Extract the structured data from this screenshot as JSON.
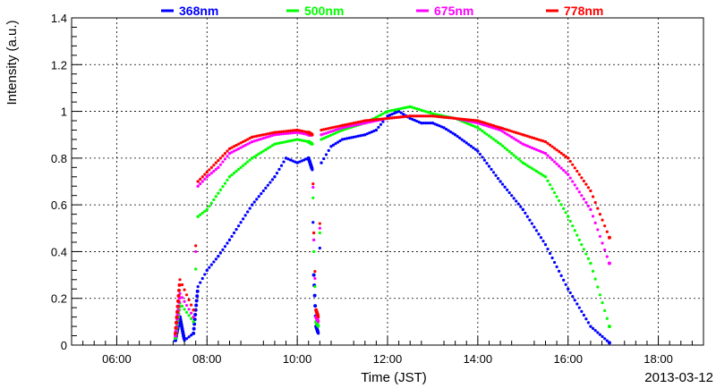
{
  "chart_data": {
    "type": "scatter",
    "xlabel": "Time (JST)",
    "ylabel": "Intensity (a.u.)",
    "date_label": "2013-03-12",
    "xlim": [
      "05:00",
      "19:00"
    ],
    "ylim": [
      0,
      1.4
    ],
    "x_ticks": [
      "06:00",
      "08:00",
      "10:00",
      "12:00",
      "14:00",
      "16:00",
      "18:00"
    ],
    "y_ticks": [
      "0",
      "0.2",
      "0.4",
      "0.6",
      "0.8",
      "1",
      "1.2",
      "1.4"
    ],
    "grid": true,
    "legend_position": "top",
    "series": [
      {
        "name": "368nm",
        "color": "#0000ff",
        "points": [
          [
            "07:18",
            0.02
          ],
          [
            "07:24",
            0.12
          ],
          [
            "07:30",
            0.02
          ],
          [
            "07:42",
            0.05
          ],
          [
            "07:48",
            0.25
          ],
          [
            "08:00",
            0.32
          ],
          [
            "08:15",
            0.38
          ],
          [
            "08:30",
            0.45
          ],
          [
            "09:00",
            0.6
          ],
          [
            "09:30",
            0.72
          ],
          [
            "09:45",
            0.8
          ],
          [
            "10:00",
            0.78
          ],
          [
            "10:15",
            0.8
          ],
          [
            "10:20",
            0.75
          ],
          [
            "10:22",
            0.3
          ],
          [
            "10:25",
            0.08
          ],
          [
            "10:28",
            0.05
          ],
          [
            "10:32",
            0.78
          ],
          [
            "10:45",
            0.85
          ],
          [
            "11:00",
            0.88
          ],
          [
            "11:30",
            0.9
          ],
          [
            "11:45",
            0.92
          ],
          [
            "12:00",
            0.98
          ],
          [
            "12:15",
            1.0
          ],
          [
            "12:30",
            0.97
          ],
          [
            "12:45",
            0.95
          ],
          [
            "13:00",
            0.95
          ],
          [
            "13:15",
            0.93
          ],
          [
            "13:30",
            0.9
          ],
          [
            "14:00",
            0.83
          ],
          [
            "14:30",
            0.7
          ],
          [
            "15:00",
            0.58
          ],
          [
            "15:30",
            0.43
          ],
          [
            "16:00",
            0.24
          ],
          [
            "16:30",
            0.08
          ],
          [
            "16:55",
            0.01
          ]
        ]
      },
      {
        "name": "500nm",
        "color": "#00ff00",
        "points": [
          [
            "07:18",
            0.03
          ],
          [
            "07:24",
            0.18
          ],
          [
            "07:42",
            0.1
          ],
          [
            "07:48",
            0.55
          ],
          [
            "08:00",
            0.58
          ],
          [
            "08:15",
            0.65
          ],
          [
            "08:30",
            0.72
          ],
          [
            "09:00",
            0.8
          ],
          [
            "09:30",
            0.86
          ],
          [
            "10:00",
            0.88
          ],
          [
            "10:15",
            0.87
          ],
          [
            "10:20",
            0.86
          ],
          [
            "10:22",
            0.4
          ],
          [
            "10:25",
            0.1
          ],
          [
            "10:28",
            0.08
          ],
          [
            "10:32",
            0.88
          ],
          [
            "11:00",
            0.92
          ],
          [
            "11:30",
            0.95
          ],
          [
            "12:00",
            1.0
          ],
          [
            "12:15",
            1.01
          ],
          [
            "12:30",
            1.02
          ],
          [
            "13:00",
            0.99
          ],
          [
            "13:30",
            0.97
          ],
          [
            "14:00",
            0.93
          ],
          [
            "14:30",
            0.86
          ],
          [
            "15:00",
            0.78
          ],
          [
            "15:30",
            0.72
          ],
          [
            "16:00",
            0.55
          ],
          [
            "16:30",
            0.35
          ],
          [
            "16:55",
            0.08
          ]
        ]
      },
      {
        "name": "675nm",
        "color": "#ff00ff",
        "points": [
          [
            "07:18",
            0.04
          ],
          [
            "07:24",
            0.22
          ],
          [
            "07:42",
            0.12
          ],
          [
            "07:48",
            0.68
          ],
          [
            "08:00",
            0.72
          ],
          [
            "08:15",
            0.76
          ],
          [
            "08:30",
            0.82
          ],
          [
            "09:00",
            0.87
          ],
          [
            "09:30",
            0.9
          ],
          [
            "10:00",
            0.91
          ],
          [
            "10:15",
            0.9
          ],
          [
            "10:20",
            0.9
          ],
          [
            "10:22",
            0.45
          ],
          [
            "10:25",
            0.12
          ],
          [
            "10:28",
            0.1
          ],
          [
            "10:32",
            0.9
          ],
          [
            "11:00",
            0.93
          ],
          [
            "11:30",
            0.95
          ],
          [
            "12:00",
            0.97
          ],
          [
            "12:30",
            0.98
          ],
          [
            "13:00",
            0.98
          ],
          [
            "13:30",
            0.97
          ],
          [
            "14:00",
            0.95
          ],
          [
            "14:30",
            0.92
          ],
          [
            "15:00",
            0.86
          ],
          [
            "15:30",
            0.82
          ],
          [
            "16:00",
            0.73
          ],
          [
            "16:30",
            0.58
          ],
          [
            "16:55",
            0.35
          ]
        ]
      },
      {
        "name": "778nm",
        "color": "#ff0000",
        "points": [
          [
            "07:18",
            0.05
          ],
          [
            "07:24",
            0.28
          ],
          [
            "07:42",
            0.15
          ],
          [
            "07:48",
            0.7
          ],
          [
            "08:00",
            0.74
          ],
          [
            "08:15",
            0.79
          ],
          [
            "08:30",
            0.84
          ],
          [
            "09:00",
            0.89
          ],
          [
            "09:30",
            0.91
          ],
          [
            "10:00",
            0.92
          ],
          [
            "10:15",
            0.91
          ],
          [
            "10:20",
            0.9
          ],
          [
            "10:22",
            0.48
          ],
          [
            "10:25",
            0.15
          ],
          [
            "10:28",
            0.12
          ],
          [
            "10:32",
            0.92
          ],
          [
            "11:00",
            0.94
          ],
          [
            "11:30",
            0.96
          ],
          [
            "12:00",
            0.97
          ],
          [
            "12:30",
            0.98
          ],
          [
            "13:00",
            0.98
          ],
          [
            "13:30",
            0.97
          ],
          [
            "14:00",
            0.96
          ],
          [
            "14:30",
            0.93
          ],
          [
            "15:00",
            0.9
          ],
          [
            "15:30",
            0.87
          ],
          [
            "16:00",
            0.8
          ],
          [
            "16:30",
            0.66
          ],
          [
            "16:55",
            0.46
          ]
        ]
      }
    ]
  }
}
